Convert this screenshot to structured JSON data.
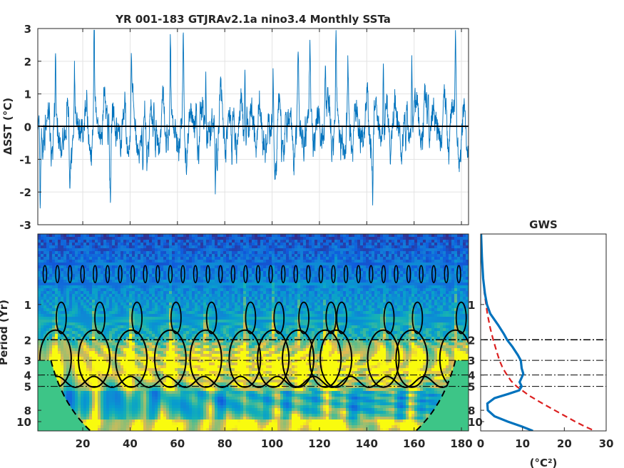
{
  "chart_data": [
    {
      "type": "line",
      "title": "YR 001-183 GTJRAv2.1a nino3.4 Monthly SSTa",
      "ylabel": "ΔSST (°C)",
      "xlim": [
        1,
        183
      ],
      "ylim": [
        -3,
        3
      ],
      "yticks": [
        "-3",
        "-2",
        "-1",
        "0",
        "1",
        "2",
        "3"
      ],
      "grid": true,
      "zero_line": true,
      "series": [
        {
          "color": "#0072BD",
          "seed": 1357,
          "peaks": [
            {
              "x": 2.0,
              "y": -2.4
            },
            {
              "x": 8.5,
              "y": 1.9
            },
            {
              "x": 14.5,
              "y": -1.8
            },
            {
              "x": 16.5,
              "y": 1.3
            },
            {
              "x": 24.8,
              "y": 2.9
            },
            {
              "x": 31.0,
              "y": 1.7
            },
            {
              "x": 31.7,
              "y": -1.75
            },
            {
              "x": 40.5,
              "y": 2.1
            },
            {
              "x": 45.5,
              "y": -1.6
            },
            {
              "x": 57.0,
              "y": 2.8
            },
            {
              "x": 62.5,
              "y": 2.1
            },
            {
              "x": 68.0,
              "y": 1.6
            },
            {
              "x": 72.0,
              "y": 2.3
            },
            {
              "x": 76.0,
              "y": -1.7
            },
            {
              "x": 83.0,
              "y": -1.85
            },
            {
              "x": 88.5,
              "y": 2.85
            },
            {
              "x": 100.5,
              "y": 2.4
            },
            {
              "x": 104.0,
              "y": -1.5
            },
            {
              "x": 111.0,
              "y": 2.6
            },
            {
              "x": 116.0,
              "y": 2.1
            },
            {
              "x": 122.5,
              "y": 2.3
            },
            {
              "x": 127.0,
              "y": 2.8
            },
            {
              "x": 132.0,
              "y": 2.0
            },
            {
              "x": 142.5,
              "y": -1.8
            },
            {
              "x": 147.0,
              "y": 2.9
            },
            {
              "x": 156.5,
              "y": -1.5
            },
            {
              "x": 159.0,
              "y": 2.3
            },
            {
              "x": 166.0,
              "y": 1.5
            },
            {
              "x": 177.5,
              "y": 2.7
            }
          ]
        }
      ]
    },
    {
      "type": "heatmap",
      "xlabel": "",
      "ylabel": "Period (Yr)",
      "xlim": [
        1,
        183
      ],
      "xticks": [
        "20",
        "40",
        "60",
        "80",
        "100",
        "120",
        "140",
        "160",
        "180"
      ],
      "yscale": "log",
      "ylim": [
        0.25,
        12
      ],
      "yticks": [
        "1",
        "2",
        "3",
        "4",
        "5",
        "8",
        "10"
      ],
      "reference_lines": [
        2,
        3,
        4,
        5
      ],
      "enso_peaks": [
        8.5,
        24.8,
        40.5,
        57.0,
        72.0,
        88.5,
        100.5,
        111.0,
        122.5,
        127.0,
        147.0,
        159.0,
        177.5
      ],
      "colormap": "parula",
      "cone_of_influence": true,
      "significance_contours": true
    },
    {
      "type": "line",
      "title": "GWS",
      "xlabel": "(°C²)",
      "xlim": [
        0,
        30
      ],
      "xticks": [
        "0",
        "10",
        "20",
        "30"
      ],
      "yscale": "log",
      "ylim": [
        0.25,
        12
      ],
      "yticks": [
        "1",
        "2",
        "3",
        "4",
        "5",
        "8",
        "10"
      ],
      "reference_lines": [
        2,
        3,
        4,
        5
      ],
      "series": [
        {
          "color": "#0072BD",
          "style": "solid",
          "period": [
            0.25,
            0.4,
            0.6,
            0.8,
            1.0,
            1.2,
            1.5,
            1.8,
            2.0,
            2.3,
            2.7,
            3.0,
            3.5,
            3.9,
            4.2,
            4.6,
            5.0,
            5.4,
            5.8,
            6.3,
            7.0,
            8.0,
            9.0,
            10.0,
            11.0,
            12.0
          ],
          "power": [
            0.1,
            0.3,
            0.6,
            1.0,
            1.5,
            2.3,
            4.2,
            5.6,
            6.3,
            7.6,
            8.9,
            9.6,
            9.8,
            10.2,
            9.8,
            9.3,
            9.8,
            9.2,
            6.6,
            3.3,
            1.6,
            1.7,
            3.3,
            6.5,
            9.8,
            12.5
          ]
        },
        {
          "color": "#dc2020",
          "style": "dashed",
          "period": [
            0.25,
            0.5,
            0.8,
            1.2,
            1.6,
            2.0,
            2.5,
            3.0,
            3.5,
            4.0,
            4.5,
            5.0,
            6.0,
            7.0,
            8.0,
            9.0,
            10.0,
            11.0,
            12.0
          ],
          "power": [
            0.1,
            0.4,
            0.9,
            1.6,
            2.3,
            3.0,
            3.8,
            4.5,
            5.3,
            6.3,
            7.3,
            8.6,
            11.6,
            14.8,
            17.7,
            20.3,
            22.6,
            24.9,
            27.3
          ]
        }
      ]
    }
  ]
}
